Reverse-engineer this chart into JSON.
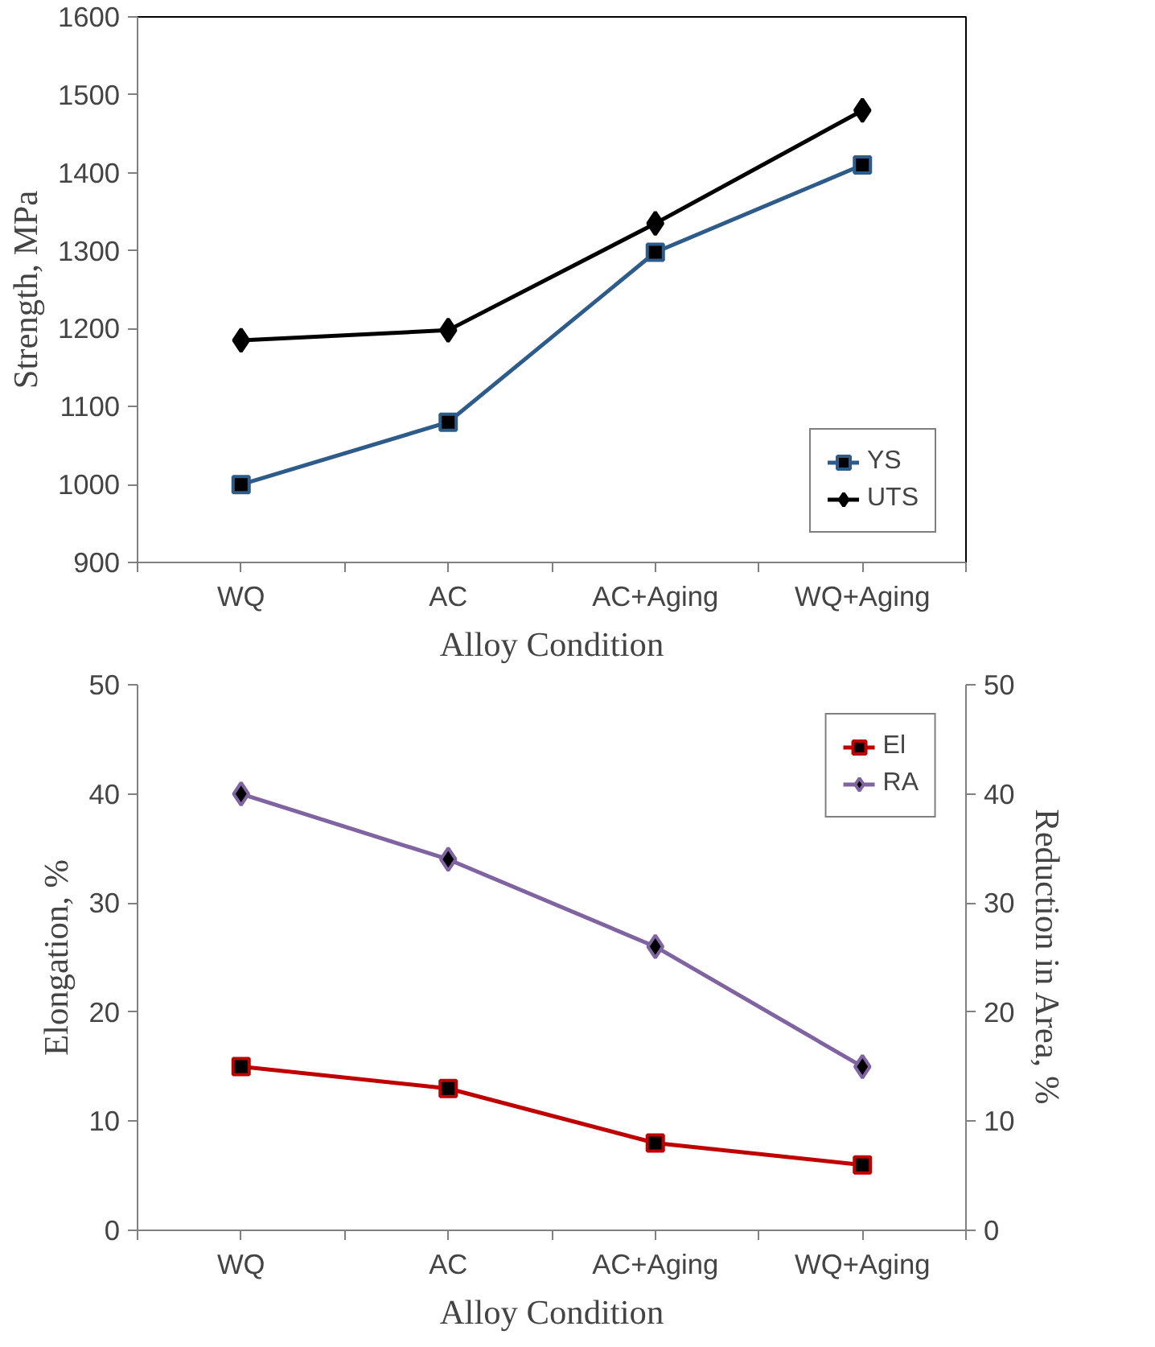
{
  "chart_data": [
    {
      "type": "line",
      "xlabel": "Alloy Condition",
      "ylabel": "Strength, MPa",
      "categories": [
        "WQ",
        "AC",
        "AC+Aging",
        "WQ+Aging"
      ],
      "ylim": [
        900,
        1600
      ],
      "yticks": [
        900,
        1000,
        1100,
        1200,
        1300,
        1400,
        1500,
        1600
      ],
      "grid": false,
      "legend": "bottom right",
      "series": [
        {
          "name": "YS",
          "color": "#2e5c8a",
          "marker": "square",
          "values": [
            1000,
            1080,
            1298,
            1410
          ]
        },
        {
          "name": "UTS",
          "color": "#000000",
          "marker": "diamond",
          "values": [
            1185,
            1198,
            1335,
            1480
          ]
        }
      ]
    },
    {
      "type": "line",
      "xlabel": "Alloy Condition",
      "ylabel": "Elongation, %",
      "y2label": "Reduction in Area, %",
      "categories": [
        "WQ",
        "AC",
        "AC+Aging",
        "WQ+Aging"
      ],
      "ylim": [
        0,
        50
      ],
      "yticks": [
        0,
        10,
        20,
        30,
        40,
        50
      ],
      "y2lim": [
        0,
        50
      ],
      "y2ticks": [
        0,
        10,
        20,
        30,
        40,
        50
      ],
      "grid": false,
      "legend": "top right",
      "series": [
        {
          "name": "El",
          "color": "#c00000",
          "marker": "square",
          "values": [
            15,
            13,
            8,
            6
          ]
        },
        {
          "name": "RA",
          "color": "#8064a2",
          "marker": "diamond",
          "values": [
            40,
            34,
            26,
            15
          ]
        }
      ]
    }
  ]
}
